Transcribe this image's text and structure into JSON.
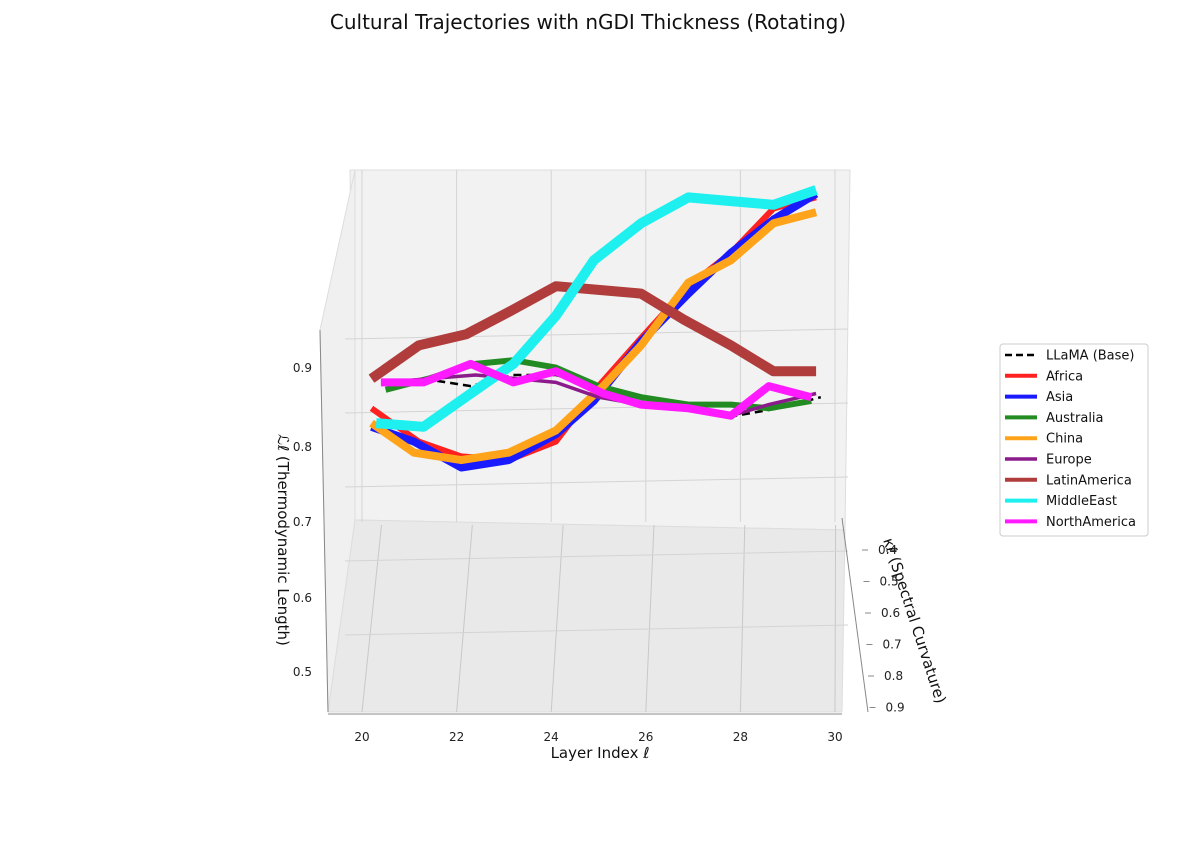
{
  "chart_data": {
    "type": "line",
    "title": "Cultural Trajectories with nGDI Thickness (Rotating)",
    "xlabel": "Layer Index ℓ",
    "ylabel": "κℓ (Spectral Curvature)",
    "zlabel": "ℒℓ (Thermodynamic Length)",
    "x_ticks": [
      "20",
      "22",
      "24",
      "26",
      "28",
      "30"
    ],
    "y_ticks": [
      "0.4",
      "0.5",
      "0.6",
      "0.7",
      "0.8",
      "0.9"
    ],
    "z_ticks": [
      "0.5",
      "0.6",
      "0.7",
      "0.8",
      "0.9"
    ],
    "legend_position": "right",
    "series": [
      {
        "name": "LLaMA (Base)",
        "color": "#000000",
        "dashed": true,
        "width": 2.5,
        "points": [
          [
            20.5,
            0.74
          ],
          [
            21.3,
            0.745
          ],
          [
            22.3,
            0.735
          ],
          [
            23.2,
            0.75
          ],
          [
            24.1,
            0.75
          ],
          [
            25.0,
            0.735
          ],
          [
            25.8,
            0.715
          ],
          [
            26.8,
            0.705
          ],
          [
            27.9,
            0.695
          ],
          [
            28.8,
            0.705
          ],
          [
            29.7,
            0.72
          ]
        ]
      },
      {
        "name": "Africa",
        "color": "#ff2020",
        "width": 6,
        "points": [
          [
            20.2,
            0.705
          ],
          [
            21.2,
            0.66
          ],
          [
            22.1,
            0.64
          ],
          [
            23.1,
            0.635
          ],
          [
            24.1,
            0.66
          ],
          [
            25.0,
            0.735
          ],
          [
            25.9,
            0.8
          ],
          [
            26.9,
            0.87
          ],
          [
            27.8,
            0.915
          ],
          [
            28.7,
            0.975
          ],
          [
            29.6,
            0.99
          ]
        ]
      },
      {
        "name": "Asia",
        "color": "#1a1aff",
        "width": 8,
        "points": [
          [
            20.2,
            0.68
          ],
          [
            21.1,
            0.66
          ],
          [
            22.1,
            0.625
          ],
          [
            23.1,
            0.635
          ],
          [
            24.1,
            0.67
          ],
          [
            24.9,
            0.715
          ],
          [
            25.9,
            0.795
          ],
          [
            26.9,
            0.86
          ],
          [
            27.8,
            0.915
          ],
          [
            28.7,
            0.96
          ],
          [
            29.6,
            0.995
          ]
        ]
      },
      {
        "name": "Australia",
        "color": "#228b22",
        "width": 6,
        "points": [
          [
            20.5,
            0.73
          ],
          [
            21.4,
            0.745
          ],
          [
            22.4,
            0.765
          ],
          [
            23.2,
            0.77
          ],
          [
            24.1,
            0.76
          ],
          [
            25.0,
            0.735
          ],
          [
            25.9,
            0.72
          ],
          [
            26.9,
            0.71
          ],
          [
            27.8,
            0.71
          ],
          [
            28.6,
            0.705
          ],
          [
            29.5,
            0.715
          ]
        ]
      },
      {
        "name": "China",
        "color": "#ffa31a",
        "width": 8,
        "points": [
          [
            20.2,
            0.685
          ],
          [
            21.1,
            0.645
          ],
          [
            22.1,
            0.635
          ],
          [
            23.1,
            0.645
          ],
          [
            24.1,
            0.675
          ],
          [
            25.1,
            0.735
          ],
          [
            25.9,
            0.79
          ],
          [
            26.9,
            0.875
          ],
          [
            27.8,
            0.905
          ],
          [
            28.7,
            0.955
          ],
          [
            29.6,
            0.97
          ]
        ]
      },
      {
        "name": "Europe",
        "color": "#8b1a8b",
        "width": 3.5,
        "points": [
          [
            20.5,
            0.74
          ],
          [
            21.4,
            0.745
          ],
          [
            22.4,
            0.75
          ],
          [
            23.3,
            0.745
          ],
          [
            24.1,
            0.74
          ],
          [
            25.0,
            0.72
          ],
          [
            25.9,
            0.71
          ],
          [
            26.9,
            0.705
          ],
          [
            27.8,
            0.695
          ],
          [
            28.6,
            0.71
          ],
          [
            29.6,
            0.725
          ]
        ]
      },
      {
        "name": "LatinAmerica",
        "color": "#b03c3c",
        "width": 10,
        "points": [
          [
            20.2,
            0.745
          ],
          [
            21.2,
            0.79
          ],
          [
            22.2,
            0.805
          ],
          [
            23.1,
            0.835
          ],
          [
            24.1,
            0.87
          ],
          [
            25.0,
            0.865
          ],
          [
            25.9,
            0.86
          ],
          [
            26.8,
            0.825
          ],
          [
            27.8,
            0.79
          ],
          [
            28.7,
            0.755
          ],
          [
            29.6,
            0.755
          ]
        ]
      },
      {
        "name": "MiddleEast",
        "color": "#1ef0f0",
        "width": 10,
        "points": [
          [
            20.3,
            0.685
          ],
          [
            21.3,
            0.68
          ],
          [
            22.3,
            0.725
          ],
          [
            23.2,
            0.765
          ],
          [
            24.1,
            0.83
          ],
          [
            24.9,
            0.905
          ],
          [
            25.9,
            0.955
          ],
          [
            26.9,
            0.99
          ],
          [
            27.8,
            0.985
          ],
          [
            28.7,
            0.98
          ],
          [
            29.6,
            1.0
          ]
        ]
      },
      {
        "name": "NorthAmerica",
        "color": "#ff1aff",
        "width": 8,
        "points": [
          [
            20.4,
            0.74
          ],
          [
            21.3,
            0.74
          ],
          [
            22.3,
            0.765
          ],
          [
            23.2,
            0.74
          ],
          [
            24.1,
            0.755
          ],
          [
            25.1,
            0.725
          ],
          [
            25.9,
            0.71
          ],
          [
            26.9,
            0.705
          ],
          [
            27.8,
            0.695
          ],
          [
            28.6,
            0.735
          ],
          [
            29.5,
            0.72
          ]
        ]
      }
    ]
  }
}
